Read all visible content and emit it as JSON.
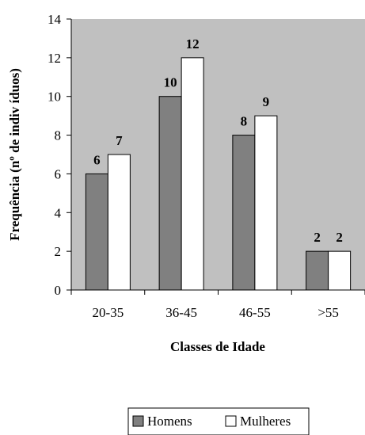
{
  "chart_data": {
    "type": "bar",
    "categories": [
      "20-35",
      "36-45",
      "46-55",
      ">55"
    ],
    "series": [
      {
        "name": "Homens",
        "values": [
          6,
          10,
          8,
          2
        ],
        "color": "#808080"
      },
      {
        "name": "Mulheres",
        "values": [
          7,
          12,
          9,
          2
        ],
        "color": "#ffffff"
      }
    ],
    "xlabel": "Classes de Idade",
    "ylabel": "Frequência (nº de indiv íduos)",
    "ylim": [
      0,
      14
    ],
    "yticks": [
      0,
      2,
      4,
      6,
      8,
      10,
      12,
      14
    ],
    "plot_background": "#c0c0c0",
    "grid": false,
    "legend_position": "bottom"
  }
}
